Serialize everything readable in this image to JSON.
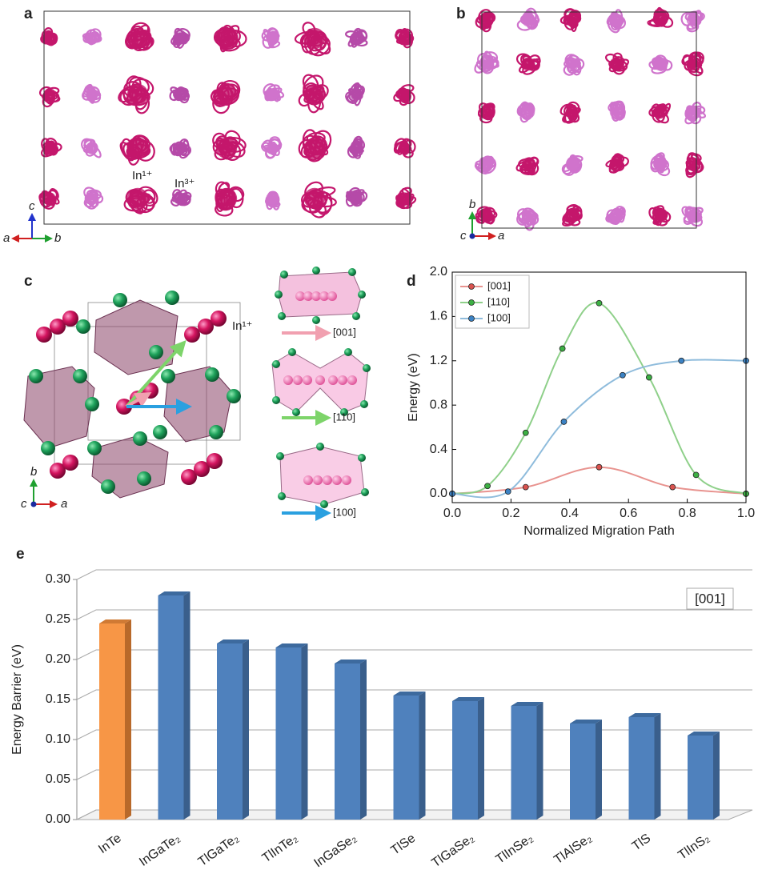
{
  "chart_data": [
    {
      "type": "line",
      "panel": "d",
      "x_label": "Normalized Migration Path",
      "y_label": "Energy (eV)",
      "xlim": [
        0,
        1.0
      ],
      "ylim": [
        -0.08,
        2.0
      ],
      "xticks": [
        {
          "value": 0,
          "label": "0.0"
        },
        {
          "value": 0.2,
          "label": "0.2"
        },
        {
          "value": 0.4,
          "label": "0.4"
        },
        {
          "value": 0.6,
          "label": "0.6"
        },
        {
          "value": 0.8,
          "label": "0.8"
        },
        {
          "value": 1,
          "label": "1.0"
        }
      ],
      "yticks": [
        {
          "value": 0,
          "label": "0.0"
        },
        {
          "value": 0.4,
          "label": "0.4"
        },
        {
          "value": 0.8,
          "label": "0.8"
        },
        {
          "value": 1.2,
          "label": "1.2"
        },
        {
          "value": 1.6,
          "label": "1.6"
        },
        {
          "value": 2,
          "label": "2.0"
        }
      ],
      "legend": "upper left",
      "series": [
        {
          "name": "[001]",
          "color": "#d9534f",
          "line_color": "#e8938f",
          "x": [
            0,
            0.25,
            0.5,
            0.75,
            1.0
          ],
          "values": [
            0,
            0.06,
            0.24,
            0.06,
            0
          ]
        },
        {
          "name": "[110]",
          "color": "#3cb043",
          "line_color": "#8fd08a",
          "x": [
            0,
            0.12,
            0.25,
            0.375,
            0.5,
            0.67,
            0.83,
            1.0
          ],
          "values": [
            0,
            0.07,
            0.55,
            1.31,
            1.72,
            1.05,
            0.17,
            0
          ]
        },
        {
          "name": "[100]",
          "color": "#3b82c4",
          "line_color": "#8fbcdc",
          "x": [
            0,
            0.19,
            0.38,
            0.58,
            0.78,
            1.0
          ],
          "values": [
            0,
            0.02,
            0.65,
            1.07,
            1.2,
            1.2
          ]
        }
      ]
    },
    {
      "type": "bar3d",
      "panel": "e",
      "y_label": "Energy Barrier (eV)",
      "annotation": "[001]",
      "categories": [
        "InTe",
        "InGaTe₂",
        "TlGaTe₂",
        "TlInTe₂",
        "InGaSe₂",
        "TlSe",
        "TlGaSe₂",
        "TlInSe₂",
        "TlAlSe₂",
        "TlS",
        "TlInS₂"
      ],
      "values": [
        0.245,
        0.28,
        0.22,
        0.215,
        0.195,
        0.155,
        0.148,
        0.142,
        0.12,
        0.128,
        0.105
      ],
      "colors": [
        "#f79646",
        "#4f81bd",
        "#4f81bd",
        "#4f81bd",
        "#4f81bd",
        "#4f81bd",
        "#4f81bd",
        "#4f81bd",
        "#4f81bd",
        "#4f81bd",
        "#4f81bd"
      ],
      "ylim": [
        0,
        0.3
      ],
      "yticks": [
        {
          "value": 0,
          "label": "0.00"
        },
        {
          "value": 0.05,
          "label": "0.05"
        },
        {
          "value": 0.1,
          "label": "0.10"
        },
        {
          "value": 0.15,
          "label": "0.15"
        },
        {
          "value": 0.2,
          "label": "0.20"
        },
        {
          "value": 0.25,
          "label": "0.25"
        },
        {
          "value": 0.3,
          "label": "0.30"
        }
      ],
      "grid": true
    }
  ],
  "panels": {
    "a": {
      "label": "a",
      "ions": [
        "In¹⁺",
        "In³⁺"
      ],
      "axes": [
        "c",
        "a",
        "b"
      ]
    },
    "b": {
      "label": "b",
      "axes": [
        "b",
        "c",
        "a"
      ]
    },
    "c": {
      "label": "c",
      "ion": "In¹⁺",
      "axes": [
        "b",
        "c",
        "a"
      ],
      "directions": [
        "[001]",
        "[110]",
        "[100]"
      ]
    }
  }
}
